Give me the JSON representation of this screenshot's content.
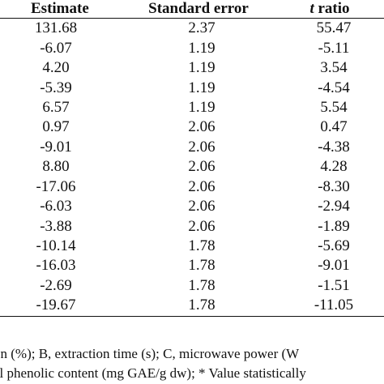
{
  "table": {
    "headers": {
      "estimate": "Estimate",
      "standard_error": "Standard error",
      "t_ratio_t": "t",
      "t_ratio_rest": " ratio"
    },
    "rows": [
      {
        "estimate": "131.68",
        "se": "2.37",
        "t": "55.47"
      },
      {
        "estimate": "-6.07",
        "se": "1.19",
        "t": "-5.11"
      },
      {
        "estimate": "4.20",
        "se": "1.19",
        "t": "3.54"
      },
      {
        "estimate": "-5.39",
        "se": "1.19",
        "t": "-4.54"
      },
      {
        "estimate": "6.57",
        "se": "1.19",
        "t": "5.54"
      },
      {
        "estimate": "0.97",
        "se": "2.06",
        "t": "0.47"
      },
      {
        "estimate": "-9.01",
        "se": "2.06",
        "t": "-4.38"
      },
      {
        "estimate": "8.80",
        "se": "2.06",
        "t": "4.28"
      },
      {
        "estimate": "-17.06",
        "se": "2.06",
        "t": "-8.30"
      },
      {
        "estimate": "-6.03",
        "se": "2.06",
        "t": "-2.94"
      },
      {
        "estimate": "-3.88",
        "se": "2.06",
        "t": "-1.89"
      },
      {
        "estimate": "-10.14",
        "se": "1.78",
        "t": "-5.69"
      },
      {
        "estimate": "-16.03",
        "se": "1.78",
        "t": "-9.01"
      },
      {
        "estimate": "-2.69",
        "se": "1.78",
        "t": "-1.51"
      },
      {
        "estimate": "-19.67",
        "se": "1.78",
        "t": "-11.05"
      }
    ]
  },
  "footnote": {
    "line1": "on (%); B, extraction time (s); C, microwave power (W",
    "line2": "al phenolic content (mg GAE/g dw); * Value statistically"
  }
}
